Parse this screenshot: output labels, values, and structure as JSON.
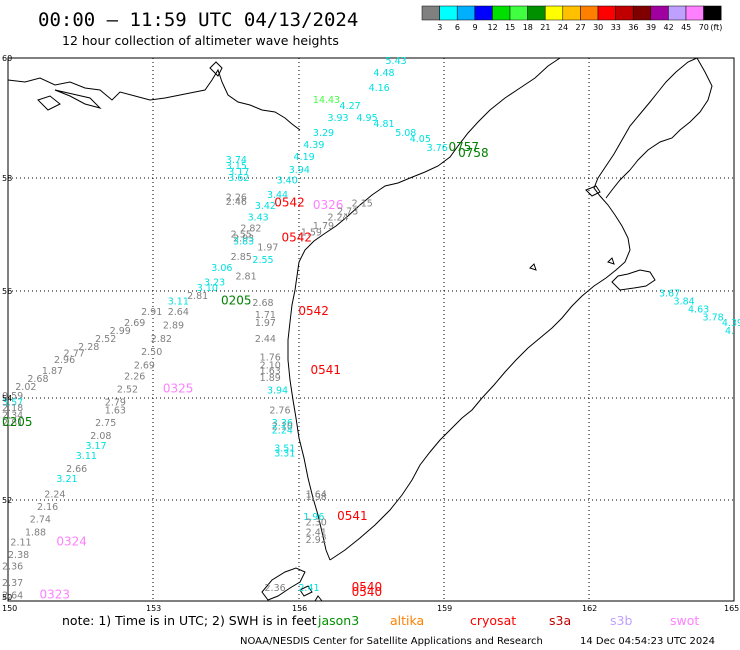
{
  "header": {
    "title": "00:00 – 11:59 UTC 04/13/2024",
    "subtitle": "12 hour collection of altimeter wave heights"
  },
  "colorbar": {
    "colors": [
      "#808080",
      "#00ffff",
      "#00b0ff",
      "#0000ff",
      "#00e000",
      "#40ff40",
      "#009000",
      "#ffff00",
      "#ffc000",
      "#ff8000",
      "#ff0000",
      "#c00000",
      "#800000",
      "#a000a0",
      "#c0a0ff",
      "#ff80ff",
      "#000000"
    ],
    "labels": [
      "3",
      "6",
      "9",
      "12",
      "15",
      "18",
      "21",
      "24",
      "27",
      "30",
      "33",
      "36",
      "39",
      "42",
      "45",
      "70",
      "(ft)"
    ]
  },
  "axes": {
    "lat_labels": [
      "60",
      "58",
      "56",
      "54",
      "52",
      "50"
    ],
    "lon_labels": [
      "150",
      "153",
      "156",
      "159",
      "162",
      "165"
    ]
  },
  "legend": {
    "note": "note:  1) Time is in UTC;  2) SWH is in feet",
    "satellites": [
      {
        "name": "jason3",
        "color": "#009000"
      },
      {
        "name": "altika",
        "color": "#ff8000"
      },
      {
        "name": "cryosat",
        "color": "#ff0000"
      },
      {
        "name": "s3a",
        "color": "#c00000"
      },
      {
        "name": "s3b",
        "color": "#c0a0ff"
      },
      {
        "name": "swot",
        "color": "#ff80ff"
      }
    ]
  },
  "footer": {
    "credit": "NOAA/NESDIS Center for Satellite Applications and Research",
    "stamp": "14 Dec 04:54:23 UTC 2024"
  },
  "labels": [
    {
      "t": "5.43",
      "lon": 157.8,
      "lat": 59.95,
      "c": "#00e0e0"
    },
    {
      "t": "4.48",
      "lon": 157.55,
      "lat": 59.7,
      "c": "#00e0e0"
    },
    {
      "t": "4.16",
      "lon": 157.45,
      "lat": 59.45,
      "c": "#00e0e0"
    },
    {
      "t": "14.43",
      "lon": 156.3,
      "lat": 59.25,
      "c": "#40ff40"
    },
    {
      "t": "4.27",
      "lon": 156.85,
      "lat": 59.15,
      "c": "#00e0e0"
    },
    {
      "t": "3.93",
      "lon": 156.6,
      "lat": 58.95,
      "c": "#00e0e0"
    },
    {
      "t": "4.95",
      "lon": 157.2,
      "lat": 58.95,
      "c": "#00e0e0"
    },
    {
      "t": "4.81",
      "lon": 157.55,
      "lat": 58.85,
      "c": "#00e0e0"
    },
    {
      "t": "5.08",
      "lon": 158,
      "lat": 58.7,
      "c": "#00e0e0"
    },
    {
      "t": "3.29",
      "lon": 156.3,
      "lat": 58.7,
      "c": "#00e0e0"
    },
    {
      "t": "4.05",
      "lon": 158.3,
      "lat": 58.6,
      "c": "#00e0e0"
    },
    {
      "t": "3.76",
      "lon": 158.65,
      "lat": 58.45,
      "c": "#00e0e0"
    },
    {
      "t": "0757",
      "lon": 159.1,
      "lat": 58.45,
      "c": "#008000"
    },
    {
      "t": "0758",
      "lon": 159.3,
      "lat": 58.35,
      "c": "#008000"
    },
    {
      "t": "4.39",
      "lon": 156.1,
      "lat": 58.5,
      "c": "#00e0e0"
    },
    {
      "t": "4.19",
      "lon": 155.9,
      "lat": 58.3,
      "c": "#00e0e0"
    },
    {
      "t": "3.74",
      "lon": 154.5,
      "lat": 58.25,
      "c": "#00e0e0"
    },
    {
      "t": "3.15",
      "lon": 154.5,
      "lat": 58.15,
      "c": "#00e0e0"
    },
    {
      "t": "3.17",
      "lon": 154.55,
      "lat": 58.05,
      "c": "#00e0e0"
    },
    {
      "t": "3.94",
      "lon": 155.8,
      "lat": 58.08,
      "c": "#00e0e0"
    },
    {
      "t": "3.62",
      "lon": 154.55,
      "lat": 57.95,
      "c": "#00e0e0"
    },
    {
      "t": "3.40",
      "lon": 155.55,
      "lat": 57.9,
      "c": "#00e0e0"
    },
    {
      "t": "3.44",
      "lon": 155.35,
      "lat": 57.65,
      "c": "#00e0e0"
    },
    {
      "t": "2.26",
      "lon": 154.5,
      "lat": 57.6,
      "c": "#808080"
    },
    {
      "t": "2.46",
      "lon": 154.5,
      "lat": 57.52,
      "c": "#808080"
    },
    {
      "t": "0542",
      "lon": 155.5,
      "lat": 57.5,
      "c": "#ff0000"
    },
    {
      "t": "3.42",
      "lon": 155.1,
      "lat": 57.45,
      "c": "#00e0e0"
    },
    {
      "t": "0326",
      "lon": 156.3,
      "lat": 57.45,
      "c": "#ff80ff"
    },
    {
      "t": "2.15",
      "lon": 157.1,
      "lat": 57.5,
      "c": "#808080"
    },
    {
      "t": "2.73",
      "lon": 156.8,
      "lat": 57.35,
      "c": "#808080"
    },
    {
      "t": "3.43",
      "lon": 154.95,
      "lat": 57.25,
      "c": "#00e0e0"
    },
    {
      "t": "2.24",
      "lon": 156.6,
      "lat": 57.25,
      "c": "#808080"
    },
    {
      "t": "2.82",
      "lon": 154.8,
      "lat": 57.05,
      "c": "#808080"
    },
    {
      "t": "1.79",
      "lon": 156.3,
      "lat": 57.1,
      "c": "#808080"
    },
    {
      "t": "2.55",
      "lon": 154.6,
      "lat": 56.95,
      "c": "#808080"
    },
    {
      "t": "1.59",
      "lon": 156.05,
      "lat": 56.98,
      "c": "#808080"
    },
    {
      "t": "2.93",
      "lon": 154.65,
      "lat": 56.88,
      "c": "#808080"
    },
    {
      "t": "0542",
      "lon": 155.65,
      "lat": 56.88,
      "c": "#ff0000"
    },
    {
      "t": "3.83",
      "lon": 154.65,
      "lat": 56.82,
      "c": "#00e0e0"
    },
    {
      "t": "1.97",
      "lon": 155.15,
      "lat": 56.72,
      "c": "#808080"
    },
    {
      "t": "2.85",
      "lon": 154.6,
      "lat": 56.55,
      "c": "#808080"
    },
    {
      "t": "2.55",
      "lon": 155.05,
      "lat": 56.5,
      "c": "#00e0e0"
    },
    {
      "t": "3.06",
      "lon": 154.2,
      "lat": 56.35,
      "c": "#00e0e0"
    },
    {
      "t": "2.81",
      "lon": 154.7,
      "lat": 56.2,
      "c": "#808080"
    },
    {
      "t": "3.23",
      "lon": 154.05,
      "lat": 56.1,
      "c": "#00e0e0"
    },
    {
      "t": "3.10",
      "lon": 153.9,
      "lat": 56.0,
      "c": "#00e0e0"
    },
    {
      "t": "2.81",
      "lon": 153.7,
      "lat": 55.85,
      "c": "#808080"
    },
    {
      "t": "0205",
      "lon": 154.4,
      "lat": 55.75,
      "c": "#008000"
    },
    {
      "t": "3.11",
      "lon": 153.3,
      "lat": 55.75,
      "c": "#00e0e0"
    },
    {
      "t": "2.68",
      "lon": 155.05,
      "lat": 55.72,
      "c": "#808080"
    },
    {
      "t": "2.91",
      "lon": 152.75,
      "lat": 55.55,
      "c": "#808080"
    },
    {
      "t": "2.64",
      "lon": 153.3,
      "lat": 55.55,
      "c": "#808080"
    },
    {
      "t": "0542",
      "lon": 156.0,
      "lat": 55.55,
      "c": "#ff0000"
    },
    {
      "t": "1.71",
      "lon": 155.1,
      "lat": 55.5,
      "c": "#808080"
    },
    {
      "t": "2.69",
      "lon": 152.4,
      "lat": 55.35,
      "c": "#808080"
    },
    {
      "t": "1.97",
      "lon": 155.1,
      "lat": 55.35,
      "c": "#808080"
    },
    {
      "t": "2.89",
      "lon": 153.2,
      "lat": 55.3,
      "c": "#808080"
    },
    {
      "t": "2.99",
      "lon": 152.1,
      "lat": 55.2,
      "c": "#808080"
    },
    {
      "t": "2.52",
      "lon": 151.8,
      "lat": 55.05,
      "c": "#808080"
    },
    {
      "t": "2.82",
      "lon": 152.95,
      "lat": 55.05,
      "c": "#808080"
    },
    {
      "t": "2.44",
      "lon": 155.1,
      "lat": 55.05,
      "c": "#808080"
    },
    {
      "t": "2.28",
      "lon": 151.45,
      "lat": 54.9,
      "c": "#808080"
    },
    {
      "t": "2.50",
      "lon": 152.75,
      "lat": 54.8,
      "c": "#808080"
    },
    {
      "t": "2.77",
      "lon": 151.15,
      "lat": 54.78,
      "c": "#808080"
    },
    {
      "t": "1.76",
      "lon": 155.2,
      "lat": 54.7,
      "c": "#808080"
    },
    {
      "t": "2.96",
      "lon": 150.95,
      "lat": 54.65,
      "c": "#808080"
    },
    {
      "t": "2.69",
      "lon": 152.6,
      "lat": 54.55,
      "c": "#808080"
    },
    {
      "t": "2.10",
      "lon": 155.2,
      "lat": 54.55,
      "c": "#808080"
    },
    {
      "t": "0541",
      "lon": 156.25,
      "lat": 54.45,
      "c": "#ff0000"
    },
    {
      "t": "1.87",
      "lon": 150.7,
      "lat": 54.45,
      "c": "#808080"
    },
    {
      "t": "1.63",
      "lon": 155.2,
      "lat": 54.45,
      "c": "#808080"
    },
    {
      "t": "2.26",
      "lon": 152.4,
      "lat": 54.35,
      "c": "#808080"
    },
    {
      "t": "1.89",
      "lon": 155.2,
      "lat": 54.32,
      "c": "#808080"
    },
    {
      "t": "2.68",
      "lon": 150.4,
      "lat": 54.3,
      "c": "#808080"
    },
    {
      "t": "2.02",
      "lon": 150.15,
      "lat": 54.15,
      "c": "#808080"
    },
    {
      "t": "2.52",
      "lon": 152.25,
      "lat": 54.1,
      "c": "#808080"
    },
    {
      "t": "0325",
      "lon": 153.2,
      "lat": 54.1,
      "c": "#ff80ff"
    },
    {
      "t": "3.94",
      "lon": 155.35,
      "lat": 54.08,
      "c": "#00e0e0"
    },
    {
      "t": "0.59",
      "lon": 149.85,
      "lat": 53.98,
      "c": "#808080"
    },
    {
      "t": "2.79",
      "lon": 152.0,
      "lat": 53.85,
      "c": "#808080"
    },
    {
      "t": "3.57",
      "lon": 149.4,
      "lat": 53.85,
      "c": "#00e0e0"
    },
    {
      "t": "2.18",
      "lon": 149.15,
      "lat": 53.75,
      "c": "#808080"
    },
    {
      "t": "1.63",
      "lon": 152.0,
      "lat": 53.7,
      "c": "#808080"
    },
    {
      "t": "2.76",
      "lon": 155.4,
      "lat": 53.7,
      "c": "#808080"
    },
    {
      "t": "2.34",
      "lon": 148.95,
      "lat": 53.6,
      "c": "#808080"
    },
    {
      "t": "2.81",
      "lon": 148.65,
      "lat": 53.45,
      "c": "#808080"
    },
    {
      "t": "0205",
      "lon": 149.7,
      "lat": 53.45,
      "c": "#008000"
    },
    {
      "t": "2.75",
      "lon": 151.8,
      "lat": 53.45,
      "c": "#808080"
    },
    {
      "t": "3.36",
      "lon": 155.45,
      "lat": 53.45,
      "c": "#00e0e0"
    },
    {
      "t": "2.10",
      "lon": 155.45,
      "lat": 53.38,
      "c": "#808080"
    },
    {
      "t": "2.08",
      "lon": 151.7,
      "lat": 53.2,
      "c": "#808080"
    },
    {
      "t": "2.24",
      "lon": 155.45,
      "lat": 53.3,
      "c": "#00e0e0"
    },
    {
      "t": "3.17",
      "lon": 151.6,
      "lat": 53.0,
      "c": "#00e0e0"
    },
    {
      "t": "3.51",
      "lon": 155.5,
      "lat": 52.95,
      "c": "#00e0e0"
    },
    {
      "t": "3.11",
      "lon": 151.4,
      "lat": 52.8,
      "c": "#00e0e0"
    },
    {
      "t": "3.31",
      "lon": 155.5,
      "lat": 52.85,
      "c": "#00e0e0"
    },
    {
      "t": "2.66",
      "lon": 151.2,
      "lat": 52.55,
      "c": "#808080"
    },
    {
      "t": "3.21",
      "lon": 151.0,
      "lat": 52.35,
      "c": "#00e0e0"
    },
    {
      "t": "1.64",
      "lon": 156.15,
      "lat": 52.05,
      "c": "#808080"
    },
    {
      "t": "2.24",
      "lon": 150.75,
      "lat": 52.05,
      "c": "#808080"
    },
    {
      "t": "1.98",
      "lon": 156.15,
      "lat": 52.0,
      "c": "#808080"
    },
    {
      "t": "2.16",
      "lon": 150.6,
      "lat": 51.8,
      "c": "#808080"
    },
    {
      "t": "1.96",
      "lon": 156.1,
      "lat": 51.6,
      "c": "#00e0e0"
    },
    {
      "t": "0541",
      "lon": 156.8,
      "lat": 51.6,
      "c": "#ff0000"
    },
    {
      "t": "2.74",
      "lon": 150.45,
      "lat": 51.55,
      "c": "#808080"
    },
    {
      "t": "2.30",
      "lon": 156.15,
      "lat": 51.5,
      "c": "#808080"
    },
    {
      "t": "1.88",
      "lon": 150.35,
      "lat": 51.3,
      "c": "#808080"
    },
    {
      "t": "2.41",
      "lon": 156.15,
      "lat": 51.3,
      "c": "#808080"
    },
    {
      "t": "2.92",
      "lon": 156.15,
      "lat": 51.15,
      "c": "#808080"
    },
    {
      "t": "2.11",
      "lon": 150.05,
      "lat": 51.1,
      "c": "#808080"
    },
    {
      "t": "0324",
      "lon": 151.0,
      "lat": 51.1,
      "c": "#ff80ff"
    },
    {
      "t": "2.38",
      "lon": 150.0,
      "lat": 50.85,
      "c": "#808080"
    },
    {
      "t": "2.36",
      "lon": 149.85,
      "lat": 50.62,
      "c": "#808080"
    },
    {
      "t": "2.37",
      "lon": 149.7,
      "lat": 50.3,
      "c": "#808080"
    },
    {
      "t": "2.36",
      "lon": 155.3,
      "lat": 50.2,
      "c": "#808080"
    },
    {
      "t": "0540",
      "lon": 157.1,
      "lat": 50.2,
      "c": "#ff0000"
    },
    {
      "t": "2.41",
      "lon": 156.0,
      "lat": 50.2,
      "c": "#00e0e0"
    },
    {
      "t": "0540",
      "lon": 157.1,
      "lat": 50.1,
      "c": "#ff0000"
    },
    {
      "t": "2.64",
      "lon": 149.5,
      "lat": 50.05,
      "c": "#808080"
    },
    {
      "t": "0323",
      "lon": 150.65,
      "lat": 50.05,
      "c": "#ff80ff"
    },
    {
      "t": "3.67",
      "lon": 163.45,
      "lat": 55.9,
      "c": "#00e0e0"
    },
    {
      "t": "3.84",
      "lon": 163.75,
      "lat": 55.75,
      "c": "#00e0e0"
    },
    {
      "t": "4.63",
      "lon": 164.05,
      "lat": 55.6,
      "c": "#00e0e0"
    },
    {
      "t": "3.78",
      "lon": 164.35,
      "lat": 55.45,
      "c": "#00e0e0"
    },
    {
      "t": "4.39",
      "lon": 164.75,
      "lat": 55.35,
      "c": "#00e0e0"
    },
    {
      "t": "4.",
      "lon": 164.95,
      "lat": 55.2,
      "c": "#00e0e0"
    }
  ]
}
